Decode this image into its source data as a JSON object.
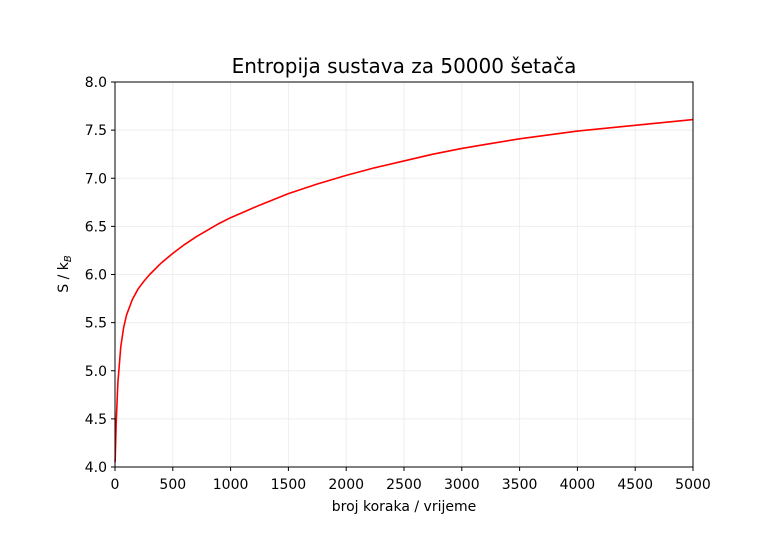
{
  "chart_data": {
    "type": "line",
    "title": "Entropija sustava za 50000 šetača",
    "xlabel": "broj koraka / vrijeme",
    "ylabel_main": "S / k",
    "ylabel_sub": "B",
    "xlim": [
      0,
      5000
    ],
    "ylim": [
      4.0,
      8.0
    ],
    "xticks": [
      0,
      500,
      1000,
      1500,
      2000,
      2500,
      3000,
      3500,
      4000,
      4500,
      5000
    ],
    "yticks": [
      4.0,
      4.5,
      5.0,
      5.5,
      6.0,
      6.5,
      7.0,
      7.5,
      8.0
    ],
    "xtick_labels": [
      "0",
      "500",
      "1000",
      "1500",
      "2000",
      "2500",
      "3000",
      "3500",
      "4000",
      "4500",
      "5000"
    ],
    "ytick_labels": [
      "4.0",
      "4.5",
      "5.0",
      "5.5",
      "6.0",
      "6.5",
      "7.0",
      "7.5",
      "8.0"
    ],
    "grid": true,
    "line_color": "#ff0000",
    "series": [
      {
        "x": [
          1,
          10,
          25,
          50,
          75,
          100,
          150,
          200,
          250,
          300,
          400,
          500,
          600,
          700,
          800,
          900,
          1000,
          1250,
          1500,
          1750,
          2000,
          2250,
          2500,
          2750,
          3000,
          3250,
          3500,
          3750,
          4000,
          4250,
          4500,
          4750,
          5000
        ],
        "y": [
          4.05,
          4.45,
          4.88,
          5.25,
          5.45,
          5.58,
          5.74,
          5.85,
          5.93,
          6.0,
          6.12,
          6.22,
          6.31,
          6.39,
          6.46,
          6.53,
          6.59,
          6.72,
          6.84,
          6.94,
          7.03,
          7.11,
          7.18,
          7.25,
          7.31,
          7.36,
          7.41,
          7.45,
          7.49,
          7.52,
          7.55,
          7.58,
          7.61
        ]
      }
    ]
  }
}
